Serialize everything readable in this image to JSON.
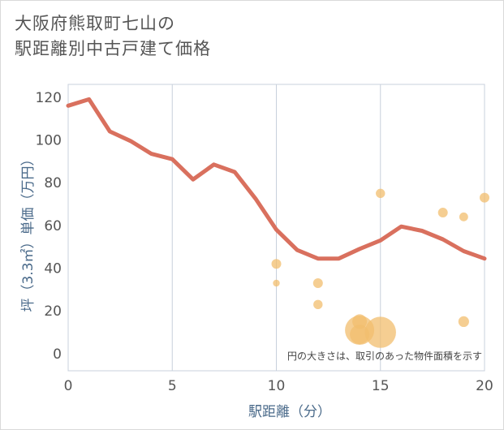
{
  "title": {
    "line1": "大阪府熊取町七山の",
    "line2": "駅距離別中古戸建て価格"
  },
  "colors": {
    "line": "#d9705e",
    "bubble": "#f2bd6d",
    "grid": "#c8d0dc",
    "axis_text": "#555555",
    "axis_title": "#4a6a8a"
  },
  "chart_data": {
    "type": "line",
    "xlabel": "駅距離（分）",
    "ylabel": "坪（3.3㎡）単価（万円）",
    "xlim": [
      0,
      20
    ],
    "ylim": [
      -8,
      126
    ],
    "x_ticks": [
      0,
      5,
      10,
      15,
      20
    ],
    "y_ticks": [
      0,
      20,
      40,
      60,
      80,
      100,
      120
    ],
    "grid": true,
    "annotation": "円の大きさは、取引のあった物件面積を示す",
    "series": [
      {
        "type": "line",
        "points": [
          [
            0,
            116
          ],
          [
            1,
            119
          ],
          [
            2,
            104
          ],
          [
            3,
            99.5
          ],
          [
            4,
            93.5
          ],
          [
            5,
            91
          ],
          [
            6,
            81.5
          ],
          [
            7,
            88.5
          ],
          [
            8,
            85
          ],
          [
            9,
            72.5
          ],
          [
            10,
            58
          ],
          [
            11,
            48.5
          ],
          [
            12,
            44.5
          ],
          [
            13,
            44.5
          ],
          [
            14,
            49
          ],
          [
            15,
            53
          ],
          [
            16,
            59.5
          ],
          [
            17,
            57.5
          ],
          [
            18,
            53.5
          ],
          [
            19,
            48
          ],
          [
            20,
            44.5
          ]
        ]
      },
      {
        "type": "bubble",
        "points": [
          {
            "x": 10,
            "y": 42,
            "size": 1.0
          },
          {
            "x": 10,
            "y": 33,
            "size": 0.7
          },
          {
            "x": 12,
            "y": 33,
            "size": 1.0
          },
          {
            "x": 12,
            "y": 23,
            "size": 0.95
          },
          {
            "x": 14,
            "y": 15,
            "size": 1.5
          },
          {
            "x": 14,
            "y": 11,
            "size": 3.0
          },
          {
            "x": 14,
            "y": 9,
            "size": 2.0
          },
          {
            "x": 15,
            "y": 75,
            "size": 0.95
          },
          {
            "x": 15,
            "y": 10,
            "size": 3.2
          },
          {
            "x": 18,
            "y": 66,
            "size": 1.0
          },
          {
            "x": 19,
            "y": 64,
            "size": 0.9
          },
          {
            "x": 19,
            "y": 15,
            "size": 1.1
          },
          {
            "x": 20,
            "y": 73,
            "size": 1.0
          }
        ]
      }
    ]
  }
}
